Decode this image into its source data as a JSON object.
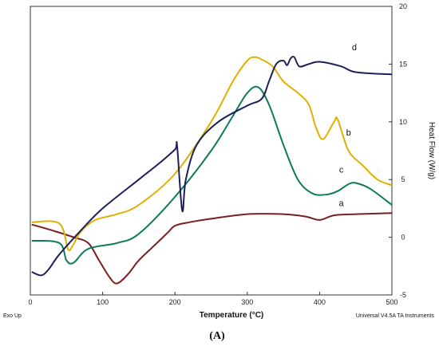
{
  "chart_data": {
    "type": "line",
    "xlabel": "Temperature (°C)",
    "ylabel": "Heat Flow (W/g)",
    "xlim": [
      0,
      500
    ],
    "ylim": [
      -5,
      20
    ],
    "xticks": [
      0,
      100,
      200,
      300,
      400,
      500
    ],
    "yticks": [
      -5,
      0,
      5,
      10,
      15,
      20
    ],
    "grid": false,
    "series": [
      {
        "name": "a",
        "color": "#7a1f1f",
        "label_at": [
          430,
          2.7
        ],
        "x": [
          2,
          30,
          60,
          80,
          95,
          110,
          120,
          135,
          150,
          170,
          190,
          200,
          220,
          250,
          300,
          350,
          380,
          400,
          420,
          450,
          500
        ],
        "y": [
          1.1,
          0.6,
          0.0,
          -0.5,
          -2.0,
          -3.5,
          -4.0,
          -3.2,
          -2.0,
          -0.8,
          0.4,
          1.0,
          1.3,
          1.6,
          2.0,
          2.0,
          1.8,
          1.5,
          1.9,
          2.0,
          2.1
        ]
      },
      {
        "name": "b",
        "color": "#e0b000",
        "label_at": [
          440,
          8.8
        ],
        "x": [
          2,
          40,
          52,
          58,
          70,
          90,
          120,
          150,
          200,
          250,
          280,
          300,
          310,
          320,
          335,
          350,
          370,
          385,
          395,
          405,
          420,
          425,
          440,
          460,
          480,
          500
        ],
        "y": [
          1.3,
          1.2,
          -1.0,
          -0.8,
          0.5,
          1.5,
          2.0,
          2.8,
          5.5,
          10.0,
          13.5,
          15.3,
          15.6,
          15.4,
          14.8,
          13.5,
          12.5,
          11.5,
          9.5,
          8.5,
          10.0,
          10.2,
          7.5,
          6.2,
          5.0,
          4.5
        ]
      },
      {
        "name": "c",
        "color": "#0e7a5a",
        "label_at": [
          430,
          5.6
        ],
        "x": [
          2,
          40,
          50,
          60,
          80,
          120,
          150,
          200,
          250,
          280,
          300,
          315,
          330,
          350,
          370,
          390,
          410,
          425,
          440,
          450,
          470,
          500
        ],
        "y": [
          -0.3,
          -0.5,
          -2.0,
          -2.2,
          -1.0,
          -0.5,
          0.3,
          3.5,
          7.5,
          10.5,
          12.5,
          13.0,
          11.5,
          8.0,
          5.0,
          3.8,
          3.7,
          4.0,
          4.6,
          4.7,
          4.2,
          2.8
        ]
      },
      {
        "name": "d",
        "color": "#1f1f5a",
        "label_at": [
          448,
          16.2
        ],
        "x": [
          2,
          15,
          25,
          40,
          70,
          100,
          150,
          180,
          200,
          203,
          210,
          215,
          230,
          260,
          300,
          320,
          330,
          340,
          350,
          355,
          360,
          365,
          372,
          385,
          400,
          430,
          450,
          500
        ],
        "y": [
          -3.0,
          -3.3,
          -2.8,
          -1.5,
          0.6,
          2.5,
          5.0,
          6.5,
          7.6,
          7.9,
          2.3,
          5.0,
          8.0,
          10.0,
          11.4,
          12.0,
          13.5,
          15.0,
          15.3,
          14.9,
          15.5,
          15.6,
          14.8,
          15.0,
          15.2,
          14.8,
          14.3,
          14.1
        ]
      }
    ]
  },
  "footer": {
    "left": "Exo Up",
    "right": "Universal V4.5A TA Instruments"
  },
  "panel_label": "(A)"
}
